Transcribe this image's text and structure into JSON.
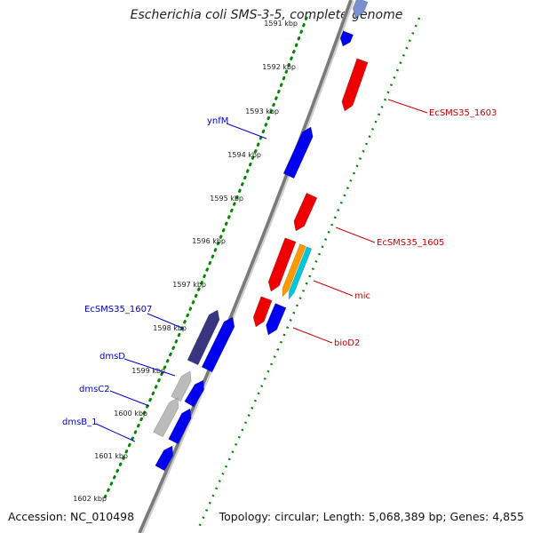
{
  "title": "Escherichia coli SMS-3-5, complete genome",
  "footer": {
    "accession": "Accession: NC_010498",
    "topology": "Topology: circular; Length: 5,068,389 bp; Genes: 4,855"
  },
  "colors": {
    "forward_gene": "#0000ee",
    "reverse_gene": "#ee0000",
    "dark_gene": "#3a3580",
    "light_gene": "#bbbbbb",
    "orange_gene": "#ff9900",
    "cyan_gene": "#00c8d8",
    "tick_dots": "#008800",
    "forward_label": "#0000cc",
    "reverse_label": "#cc0000"
  },
  "ticks": [
    {
      "label": "1591 kbp"
    },
    {
      "label": "1592 kbp"
    },
    {
      "label": "1593 kbp"
    },
    {
      "label": "1594 kbp"
    },
    {
      "label": "1595 kbp"
    },
    {
      "label": "1596 kbp"
    },
    {
      "label": "1597 kbp"
    },
    {
      "label": "1598 kbp"
    },
    {
      "label": "1599 kbp"
    },
    {
      "label": "1600 kbp"
    },
    {
      "label": "1601 kbp"
    },
    {
      "label": "1602 kbp"
    }
  ],
  "gene_labels": [
    {
      "text": "ynfM",
      "strand": "forward"
    },
    {
      "text": "EcSMS35_1607",
      "strand": "forward"
    },
    {
      "text": "dmsD",
      "strand": "forward"
    },
    {
      "text": "dmsC2",
      "strand": "forward"
    },
    {
      "text": "dmsB_1",
      "strand": "forward"
    },
    {
      "text": "EcSMS35_1603",
      "strand": "reverse"
    },
    {
      "text": "EcSMS35_1605",
      "strand": "reverse"
    },
    {
      "text": "mic",
      "strand": "reverse"
    },
    {
      "text": "bioD2",
      "strand": "reverse"
    }
  ]
}
